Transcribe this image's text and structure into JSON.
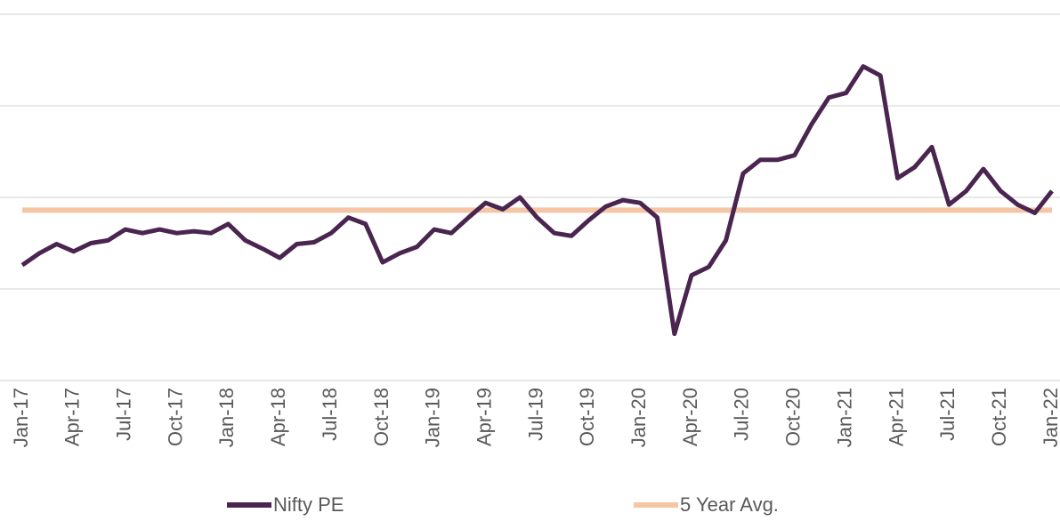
{
  "chart_data": {
    "type": "line",
    "categories": [
      "Jan-17",
      null,
      null,
      "Apr-17",
      null,
      null,
      "Jul-17",
      null,
      null,
      "Oct-17",
      null,
      null,
      "Jan-18",
      null,
      null,
      "Apr-18",
      null,
      null,
      "Jul-18",
      null,
      null,
      "Oct-18",
      null,
      null,
      "Jan-19",
      null,
      null,
      "Apr-19",
      null,
      null,
      "Jul-19",
      null,
      null,
      "Oct-19",
      null,
      null,
      "Jan-20",
      null,
      null,
      "Apr-20",
      null,
      null,
      "Jul-20",
      null,
      null,
      "Oct-20",
      null,
      null,
      "Jan-21",
      null,
      null,
      "Apr-21",
      null,
      null,
      "Jul-21",
      null,
      null,
      "Oct-21",
      null,
      null,
      "Jan-22"
    ],
    "series": [
      {
        "name": "Nifty PE",
        "color": "#4a2550",
        "values": [
          22.6,
          23.9,
          24.9,
          24.1,
          25.0,
          25.3,
          26.5,
          26.1,
          26.5,
          26.1,
          26.3,
          26.1,
          27.1,
          25.3,
          24.4,
          23.4,
          24.9,
          25.1,
          26.1,
          27.8,
          27.1,
          22.9,
          23.9,
          24.6,
          26.5,
          26.1,
          27.8,
          29.4,
          28.7,
          30.0,
          27.8,
          26.1,
          25.8,
          27.5,
          29.0,
          29.7,
          29.4,
          27.8,
          15.1,
          21.5,
          22.4,
          25.3,
          32.6,
          34.1,
          34.1,
          34.6,
          38.0,
          40.9,
          41.4,
          44.3,
          43.3,
          32.1,
          33.3,
          35.5,
          29.2,
          30.7,
          33.1,
          30.7,
          29.2,
          28.3,
          30.7
        ]
      },
      {
        "name": "5 Year Avg.",
        "color": "#f5c6a5",
        "values": [
          28.6,
          28.6,
          28.6,
          28.6,
          28.6,
          28.6,
          28.6,
          28.6,
          28.6,
          28.6,
          28.6,
          28.6,
          28.6,
          28.6,
          28.6,
          28.6,
          28.6,
          28.6,
          28.6,
          28.6,
          28.6,
          28.6,
          28.6,
          28.6,
          28.6,
          28.6,
          28.6,
          28.6,
          28.6,
          28.6,
          28.6,
          28.6,
          28.6,
          28.6,
          28.6,
          28.6,
          28.6,
          28.6,
          28.6,
          28.6,
          28.6,
          28.6,
          28.6,
          28.6,
          28.6,
          28.6,
          28.6,
          28.6,
          28.6,
          28.6,
          28.6,
          28.6,
          28.6,
          28.6,
          28.6,
          28.6,
          28.6,
          28.6,
          28.6,
          28.6,
          28.6
        ]
      }
    ],
    "ylim": [
      10,
      50
    ],
    "yticks": [
      10,
      20,
      30,
      40,
      50
    ],
    "grid": true
  }
}
